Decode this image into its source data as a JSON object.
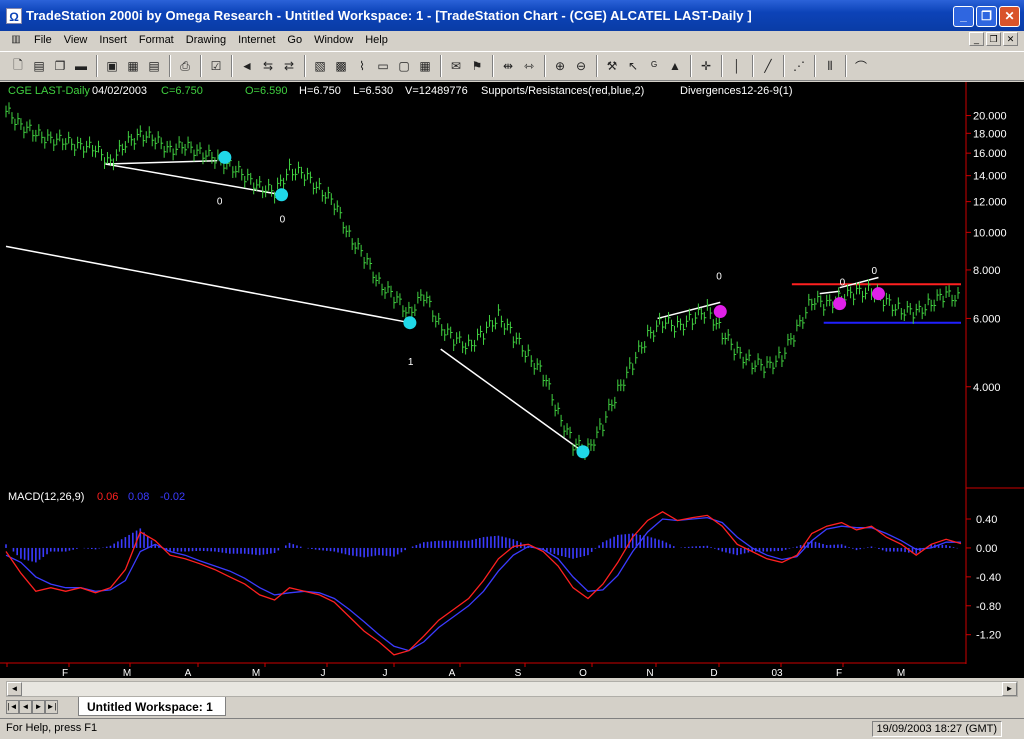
{
  "window": {
    "title": "TradeStation 2000i by Omega Research - Untitled Workspace:  1 - [TradeStation Chart - (CGE) ALCATEL LAST-Daily ]",
    "app_icon": "omega-icon"
  },
  "menu": [
    "File",
    "View",
    "Insert",
    "Format",
    "Drawing",
    "Internet",
    "Go",
    "Window",
    "Help"
  ],
  "chart_header": {
    "symbol": "CGE LAST-Daily",
    "date": "04/02/2003",
    "close": "C=6.750",
    "open": "O=6.590",
    "high": "H=6.750",
    "low": "L=6.530",
    "volume": "V=12489776",
    "indicator1": "Supports/Resistances(red,blue,2)",
    "indicator2": "Divergences12-26-9(1)"
  },
  "macd_header": {
    "label": "MACD(12,26,9)",
    "v1": "0.06",
    "v2": "0.08",
    "v3": "-0.02",
    "v1_color": "#ff2020",
    "v2_color": "#3b3bff",
    "v3_color": "#3b3bff"
  },
  "chart_data": [
    {
      "type": "line",
      "panel": "price",
      "scale": "log",
      "y_ticks": [
        "20.000",
        "18.000",
        "16.000",
        "14.000",
        "12.000",
        "10.000",
        "8.000",
        "6.000",
        "4.000"
      ],
      "y_tick_values": [
        20,
        18,
        16,
        14,
        12,
        10,
        8,
        6,
        4
      ],
      "ylim": [
        2.3,
        23
      ],
      "bar_color": "#40d040",
      "series": [
        {
          "x": [
            0,
            15,
            30,
            45,
            60,
            75,
            90,
            105,
            120,
            135,
            150,
            165,
            180,
            195,
            210,
            225,
            240,
            255,
            270,
            285,
            300,
            315,
            330,
            345,
            360,
            375,
            390,
            405,
            420,
            435,
            450,
            465,
            480,
            495,
            510,
            525,
            540,
            555,
            570,
            585,
            600,
            615,
            630,
            645,
            660,
            675,
            690,
            705,
            720,
            735,
            750,
            765,
            780,
            795,
            810,
            825,
            840,
            855,
            870,
            885,
            900,
            915,
            930,
            945,
            960
          ],
          "values": [
            20.5,
            19.0,
            17.8,
            17.5,
            17.0,
            16.8,
            16.3,
            15.2,
            16.8,
            18.0,
            17.2,
            16.4,
            16.6,
            16.2,
            15.4,
            15.0,
            13.8,
            13.2,
            12.6,
            14.6,
            14.0,
            13.0,
            11.8,
            9.8,
            8.6,
            7.4,
            6.8,
            6.2,
            6.9,
            5.8,
            5.3,
            5.1,
            5.5,
            6.1,
            5.4,
            4.8,
            4.3,
            3.4,
            2.85,
            2.75,
            3.2,
            3.9,
            4.6,
            5.4,
            5.9,
            5.7,
            6.0,
            6.3,
            5.5,
            4.9,
            4.6,
            4.5,
            4.8,
            5.6,
            6.7,
            6.5,
            6.8,
            7.0,
            7.1,
            6.6,
            6.3,
            6.2,
            6.6,
            6.9,
            6.75
          ]
        }
      ],
      "markers": [
        {
          "x": 220,
          "value": 15.6,
          "color": "#20d8e8",
          "label": ""
        },
        {
          "x": 277,
          "value": 12.5,
          "color": "#20d8e8",
          "label": "0"
        },
        {
          "x": 406,
          "value": 5.85,
          "color": "#20d8e8",
          "label": "1"
        },
        {
          "x": 580,
          "value": 2.72,
          "color": "#20d8e8",
          "label": ""
        },
        {
          "x": 718,
          "value": 6.25,
          "color": "#e020e8",
          "label": "0"
        },
        {
          "x": 838,
          "value": 6.55,
          "color": "#e020e8",
          "label": "0"
        },
        {
          "x": 877,
          "value": 6.95,
          "color": "#e020e8",
          "label": "0"
        }
      ],
      "marker_label_zero": "0",
      "resistance": {
        "value": 7.35,
        "color": "#ff2020"
      },
      "support": {
        "value": 5.85,
        "color": "#2020ff"
      }
    },
    {
      "type": "line",
      "panel": "macd",
      "y_ticks": [
        "0.40",
        "0.00",
        "-0.40",
        "-0.80",
        "-1.20"
      ],
      "y_tick_values": [
        0.4,
        0.0,
        -0.4,
        -0.8,
        -1.2
      ],
      "ylim": [
        -1.55,
        0.58
      ],
      "x_labels": [
        "F",
        "M",
        "A",
        "M",
        "J",
        "J",
        "A",
        "S",
        "O",
        "N",
        "D",
        "03",
        "F",
        "M"
      ],
      "x_label_pos": [
        65,
        127,
        188,
        256,
        323,
        385,
        452,
        518,
        583,
        650,
        714,
        777,
        839,
        901
      ],
      "x": [
        0,
        15,
        30,
        45,
        60,
        75,
        90,
        105,
        120,
        135,
        150,
        165,
        180,
        195,
        210,
        225,
        240,
        255,
        270,
        285,
        300,
        315,
        330,
        345,
        360,
        375,
        390,
        405,
        420,
        435,
        450,
        465,
        480,
        495,
        510,
        525,
        540,
        555,
        570,
        585,
        600,
        615,
        630,
        645,
        660,
        675,
        690,
        705,
        720,
        735,
        750,
        765,
        780,
        795,
        810,
        825,
        840,
        855,
        870,
        885,
        900,
        915,
        930,
        945,
        960
      ],
      "series": [
        {
          "name": "MACD",
          "color": "#ff2020",
          "values": [
            -0.05,
            -0.35,
            -0.6,
            -0.55,
            -0.6,
            -0.55,
            -0.62,
            -0.55,
            -0.3,
            0.22,
            0.1,
            -0.1,
            -0.15,
            -0.22,
            -0.3,
            -0.4,
            -0.5,
            -0.65,
            -0.72,
            -0.55,
            -0.6,
            -0.65,
            -0.75,
            -0.95,
            -1.15,
            -1.3,
            -1.48,
            -1.42,
            -1.22,
            -1.0,
            -0.85,
            -0.7,
            -0.45,
            -0.15,
            0.02,
            0.05,
            -0.05,
            -0.25,
            -0.55,
            -0.7,
            -0.5,
            -0.2,
            0.15,
            0.38,
            0.5,
            0.38,
            0.42,
            0.45,
            0.3,
            0.05,
            -0.05,
            -0.15,
            -0.2,
            -0.1,
            0.2,
            0.3,
            0.35,
            0.25,
            0.3,
            0.15,
            0.05,
            -0.1,
            0.05,
            0.12,
            0.06
          ]
        },
        {
          "name": "Signal",
          "color": "#3b3bff",
          "values": [
            -0.1,
            -0.2,
            -0.4,
            -0.5,
            -0.55,
            -0.55,
            -0.6,
            -0.58,
            -0.45,
            -0.05,
            0.05,
            -0.05,
            -0.1,
            -0.18,
            -0.25,
            -0.32,
            -0.42,
            -0.55,
            -0.65,
            -0.62,
            -0.6,
            -0.62,
            -0.7,
            -0.85,
            -1.02,
            -1.2,
            -1.36,
            -1.42,
            -1.3,
            -1.1,
            -0.95,
            -0.8,
            -0.6,
            -0.32,
            -0.1,
            0.02,
            -0.02,
            -0.15,
            -0.4,
            -0.6,
            -0.58,
            -0.38,
            -0.05,
            0.22,
            0.4,
            0.38,
            0.4,
            0.42,
            0.35,
            0.15,
            0.0,
            -0.1,
            -0.16,
            -0.12,
            0.1,
            0.26,
            0.3,
            0.28,
            0.28,
            0.2,
            0.1,
            -0.02,
            0.0,
            0.08,
            0.08
          ]
        },
        {
          "name": "Histogram",
          "color": "#3b3bff",
          "values": [
            0.05,
            -0.15,
            -0.2,
            -0.05,
            -0.05,
            0.0,
            -0.02,
            0.03,
            0.15,
            0.27,
            0.05,
            -0.05,
            -0.05,
            -0.04,
            -0.05,
            -0.08,
            -0.08,
            -0.1,
            -0.07,
            0.07,
            0.0,
            -0.03,
            -0.05,
            -0.1,
            -0.13,
            -0.1,
            -0.12,
            0.0,
            0.08,
            0.1,
            0.1,
            0.1,
            0.15,
            0.17,
            0.12,
            0.03,
            -0.03,
            -0.1,
            -0.15,
            -0.1,
            0.08,
            0.18,
            0.2,
            0.16,
            0.1,
            0.0,
            0.02,
            0.03,
            -0.05,
            -0.1,
            -0.05,
            -0.05,
            -0.04,
            0.02,
            0.1,
            0.04,
            0.05,
            -0.03,
            0.02,
            -0.05,
            -0.05,
            -0.08,
            0.05,
            0.04,
            -0.02
          ]
        }
      ]
    }
  ],
  "workspace_tab": "Untitled Workspace:  1",
  "status": {
    "help": "For Help, press F1",
    "clock": "19/09/2003 18:27 (GMT)"
  },
  "colors": {
    "price_header": "#40d040",
    "chart_bg": "#000000",
    "axis": "#cc0000"
  }
}
